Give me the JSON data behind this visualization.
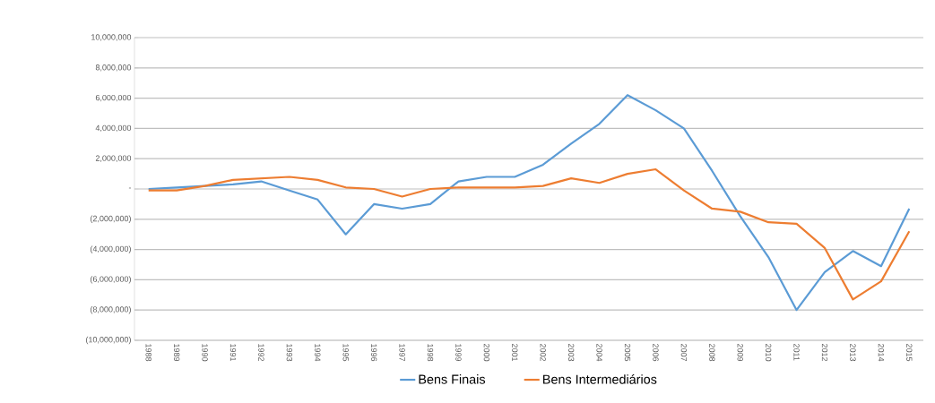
{
  "chart_data": {
    "type": "line",
    "categories": [
      "1988",
      "1989",
      "1990",
      "1991",
      "1992",
      "1993",
      "1994",
      "1995",
      "1996",
      "1997",
      "1998",
      "1999",
      "2000",
      "2001",
      "2002",
      "2003",
      "2004",
      "2005",
      "2006",
      "2007",
      "2008",
      "2009",
      "2010",
      "2011",
      "2012",
      "2013",
      "2014",
      "2015"
    ],
    "series": [
      {
        "name": "Bens Finais",
        "color": "#5b9bd5",
        "values": [
          0,
          100000,
          200000,
          300000,
          500000,
          -100000,
          -700000,
          -3000000,
          -1000000,
          -1300000,
          -1000000,
          500000,
          800000,
          800000,
          1600000,
          3000000,
          4300000,
          6200000,
          5200000,
          4000000,
          1200000,
          -1800000,
          -4500000,
          -8000000,
          -5500000,
          -4100000,
          -5100000,
          -1300000
        ]
      },
      {
        "name": "Bens Intermediários",
        "color": "#ed7d31",
        "values": [
          -100000,
          -100000,
          200000,
          600000,
          700000,
          800000,
          600000,
          100000,
          0,
          -500000,
          0,
          100000,
          100000,
          100000,
          200000,
          700000,
          400000,
          1000000,
          1300000,
          -100000,
          -1300000,
          -1500000,
          -2200000,
          -2300000,
          -3900000,
          -7300000,
          -6100000,
          -2800000
        ]
      }
    ],
    "ylim": [
      -10000000,
      10000000
    ],
    "yticks": [
      {
        "value": -10000000,
        "label": "(10,000,000)"
      },
      {
        "value": -8000000,
        "label": "(8,000,000)"
      },
      {
        "value": -6000000,
        "label": "(6,000,000)"
      },
      {
        "value": -4000000,
        "label": "(4,000,000)"
      },
      {
        "value": -2000000,
        "label": "(2,000,000)"
      },
      {
        "value": 0,
        "label": "-"
      },
      {
        "value": 2000000,
        "label": "2,000,000"
      },
      {
        "value": 4000000,
        "label": "4,000,000"
      },
      {
        "value": 6000000,
        "label": "6,000,000"
      },
      {
        "value": 8000000,
        "label": "8,000,000"
      },
      {
        "value": 10000000,
        "label": "10,000,000"
      }
    ],
    "grid": "y",
    "legend": "bottom",
    "marker": "none",
    "line_style": "solid"
  }
}
